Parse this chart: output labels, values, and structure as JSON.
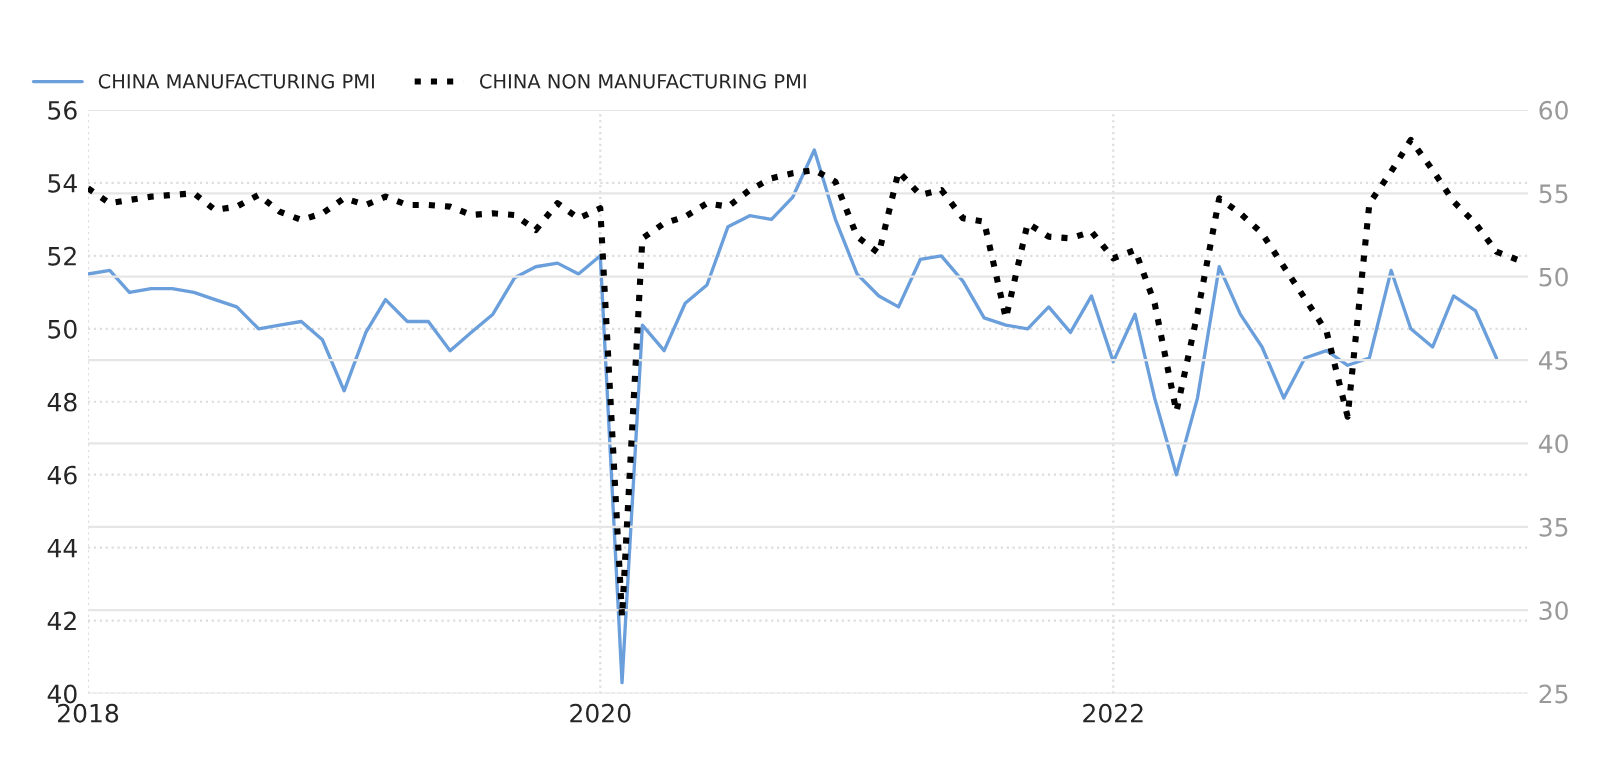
{
  "chart_data": {
    "type": "line",
    "xlim": [
      "2018-01",
      "2023-08-15"
    ],
    "xticks": [
      {
        "value": "2018-01-01",
        "label": "2018"
      },
      {
        "value": "2020-01-01",
        "label": "2020"
      },
      {
        "value": "2022-01-01",
        "label": "2022"
      }
    ],
    "ylim": [
      40,
      56
    ],
    "yticks": [
      40,
      42,
      44,
      46,
      48,
      50,
      52,
      54,
      56
    ],
    "y2lim": [
      25,
      60
    ],
    "y2ticks": [
      25,
      30,
      35,
      40,
      45,
      50,
      55,
      60
    ],
    "grid": true,
    "legend": "top left",
    "series": [
      {
        "name": "CHINA MANUFACTURING PMI",
        "color": "#6a9fdc",
        "line_style": "solid",
        "axis": "y",
        "x": [
          "2018-01",
          "2018-02",
          "2018-03",
          "2018-04",
          "2018-05",
          "2018-06",
          "2018-07",
          "2018-08",
          "2018-09",
          "2018-10",
          "2018-11",
          "2018-12",
          "2019-01",
          "2019-02",
          "2019-03",
          "2019-04",
          "2019-05",
          "2019-06",
          "2019-07",
          "2019-08",
          "2019-09",
          "2019-10",
          "2019-11",
          "2019-12",
          "2020-01",
          "2020-02",
          "2020-03",
          "2020-04",
          "2020-05",
          "2020-06",
          "2020-07",
          "2020-08",
          "2020-09",
          "2020-10",
          "2020-11",
          "2020-12",
          "2021-01",
          "2021-02",
          "2021-03",
          "2021-04",
          "2021-05",
          "2021-06",
          "2021-07",
          "2021-08",
          "2021-09",
          "2021-10",
          "2021-11",
          "2021-12",
          "2022-01",
          "2022-02",
          "2022-03",
          "2022-04",
          "2022-05",
          "2022-06",
          "2022-07",
          "2022-08",
          "2022-09",
          "2022-10",
          "2022-11",
          "2022-12",
          "2023-01",
          "2023-02",
          "2023-03",
          "2023-04",
          "2023-05",
          "2023-06",
          "2023-07"
        ],
        "values": [
          51.5,
          51.6,
          51.0,
          51.1,
          51.1,
          51.0,
          50.8,
          50.6,
          50.0,
          50.1,
          50.2,
          49.7,
          48.3,
          49.9,
          50.8,
          50.2,
          50.2,
          49.4,
          49.9,
          50.4,
          51.4,
          51.7,
          51.8,
          51.5,
          52.0,
          40.3,
          50.1,
          49.4,
          50.7,
          51.2,
          52.8,
          53.1,
          53.0,
          53.6,
          54.9,
          53.0,
          51.5,
          50.9,
          50.6,
          51.9,
          52.0,
          51.3,
          50.3,
          50.1,
          50.0,
          50.6,
          49.9,
          50.9,
          49.1,
          50.4,
          48.1,
          46.0,
          48.1,
          51.7,
          50.4,
          49.5,
          48.1,
          49.2,
          49.4,
          49.0,
          49.2,
          51.6,
          50.0,
          49.5,
          50.9,
          50.5,
          49.2
        ]
      },
      {
        "name": "CHINA NON MANUFACTURING PMI",
        "color": "#000000",
        "line_style": "dotted",
        "axis": "y2",
        "x": [
          "2018-01",
          "2018-02",
          "2018-03",
          "2018-04",
          "2018-05",
          "2018-06",
          "2018-07",
          "2018-08",
          "2018-09",
          "2018-10",
          "2018-11",
          "2018-12",
          "2019-01",
          "2019-02",
          "2019-03",
          "2019-04",
          "2019-05",
          "2019-06",
          "2019-07",
          "2019-08",
          "2019-09",
          "2019-10",
          "2019-11",
          "2019-12",
          "2020-01",
          "2020-02",
          "2020-03",
          "2020-04",
          "2020-05",
          "2020-06",
          "2020-07",
          "2020-08",
          "2020-09",
          "2020-10",
          "2020-11",
          "2020-12",
          "2021-01",
          "2021-02",
          "2021-03",
          "2021-04",
          "2021-05",
          "2021-06",
          "2021-07",
          "2021-08",
          "2021-09",
          "2021-10",
          "2021-11",
          "2021-12",
          "2022-01",
          "2022-02",
          "2022-03",
          "2022-04",
          "2022-05",
          "2022-06",
          "2022-07",
          "2022-08",
          "2022-09",
          "2022-10",
          "2022-11",
          "2022-12",
          "2023-01",
          "2023-02",
          "2023-03",
          "2023-04",
          "2023-05",
          "2023-06",
          "2023-07",
          "2023-08"
        ],
        "values": [
          55.3,
          54.4,
          54.6,
          54.8,
          54.9,
          55.0,
          54.0,
          54.2,
          54.9,
          53.9,
          53.4,
          53.8,
          54.7,
          54.3,
          54.8,
          54.3,
          54.3,
          54.2,
          53.7,
          53.8,
          53.7,
          52.8,
          54.4,
          53.5,
          54.1,
          29.6,
          52.3,
          53.2,
          53.6,
          54.4,
          54.2,
          55.2,
          55.9,
          56.2,
          56.4,
          55.7,
          52.4,
          51.4,
          56.3,
          54.9,
          55.2,
          53.5,
          53.3,
          47.5,
          53.2,
          52.4,
          52.3,
          52.7,
          51.1,
          51.6,
          48.4,
          41.9,
          47.8,
          54.7,
          53.8,
          52.6,
          50.6,
          48.7,
          46.7,
          41.6,
          54.4,
          56.3,
          58.2,
          56.4,
          54.5,
          53.2,
          51.5,
          51.0
        ]
      }
    ]
  }
}
